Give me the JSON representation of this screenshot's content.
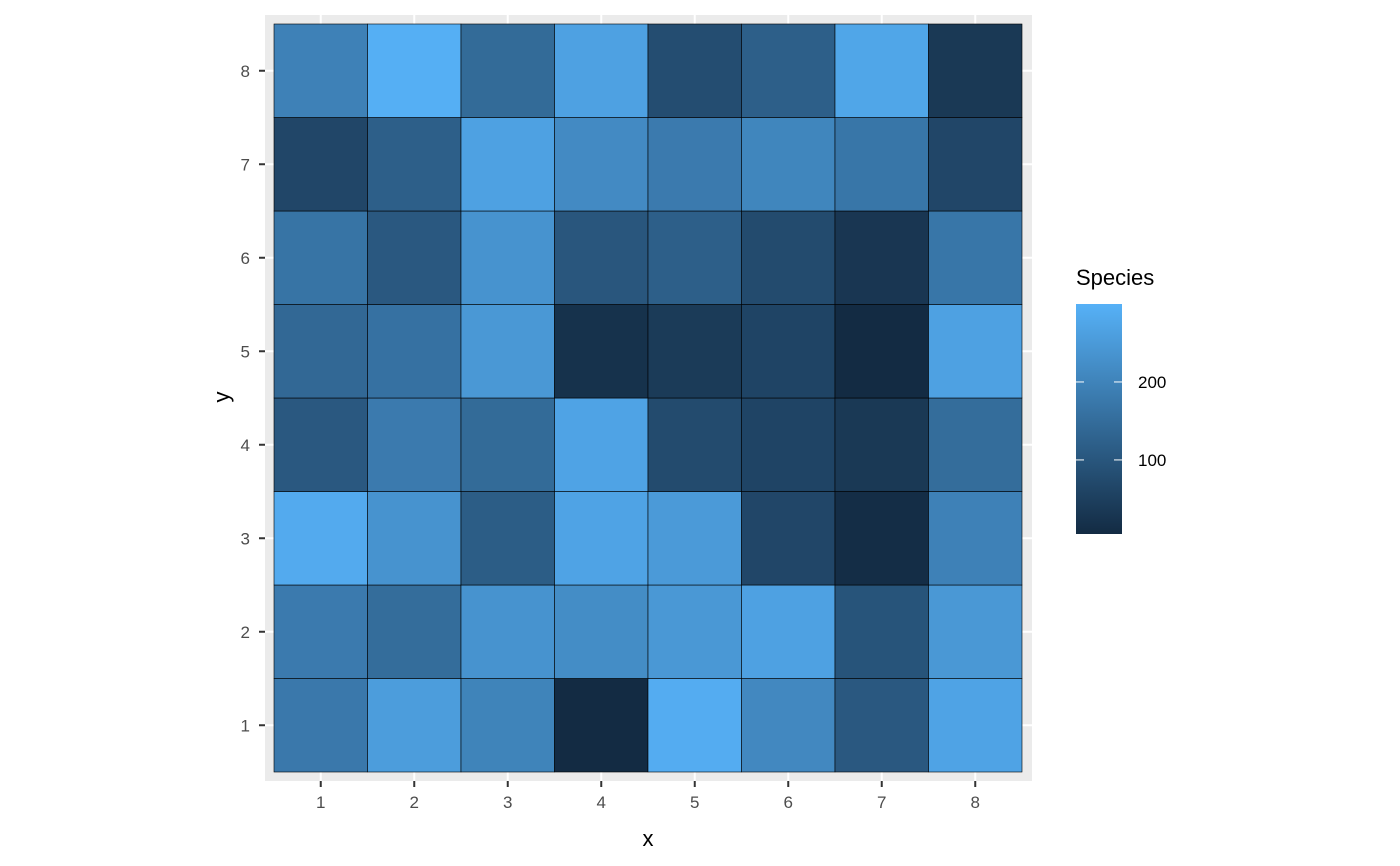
{
  "chart_data": {
    "type": "heatmap",
    "xlabel": "x",
    "ylabel": "y",
    "x": [
      1,
      2,
      3,
      4,
      5,
      6,
      7,
      8
    ],
    "y": [
      1,
      2,
      3,
      4,
      5,
      6,
      7,
      8
    ],
    "values": [
      [
        175,
        255,
        200,
        5,
        290,
        210,
        105,
        270
      ],
      [
        180,
        150,
        235,
        220,
        245,
        265,
        95,
        245
      ],
      [
        285,
        235,
        115,
        270,
        250,
        65,
        10,
        195
      ],
      [
        105,
        180,
        145,
        270,
        75,
        60,
        35,
        150
      ],
      [
        140,
        160,
        245,
        20,
        40,
        60,
        5,
        265
      ],
      [
        165,
        105,
        235,
        100,
        120,
        75,
        30,
        170
      ],
      [
        65,
        120,
        265,
        215,
        180,
        205,
        170,
        65
      ],
      [
        195,
        295,
        145,
        265,
        80,
        120,
        275,
        35
      ]
    ],
    "value_range": [
      5,
      300
    ],
    "grid": true,
    "legend": {
      "title": "Species",
      "ticks": [
        100,
        200
      ],
      "position": "right"
    },
    "colors": {
      "low": "#132B43",
      "high": "#56B1F7",
      "panel_background": "#EBEBEB",
      "grid_line": "#FFFFFF",
      "tile_border": "#000000"
    }
  }
}
